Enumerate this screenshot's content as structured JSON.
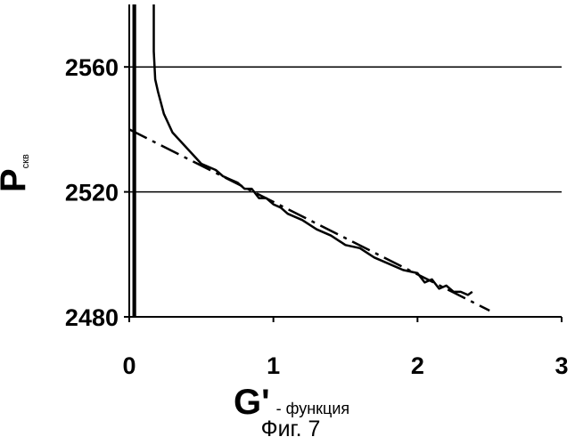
{
  "figure_caption": "Фиг. 7",
  "chart_data": {
    "type": "line",
    "title": "",
    "ylabel": {
      "main": "P",
      "sub": "скв"
    },
    "xlabel": {
      "main": "G'",
      "sub": " - функция"
    },
    "xlim": [
      0,
      3
    ],
    "ylim": [
      2480,
      2580
    ],
    "x_ticks": [
      0,
      1,
      2,
      3
    ],
    "y_ticks": [
      2480,
      2520,
      2560
    ],
    "x_tick_labels": [
      "0",
      "1",
      "2",
      "3"
    ],
    "y_tick_labels": [
      "2480",
      "2520",
      "2560"
    ],
    "grid": "horizontal",
    "legend": "none",
    "series": [
      {
        "style": "solid",
        "x": [
          0.17,
          0.17,
          0.18,
          0.2,
          0.24,
          0.3,
          0.4,
          0.5,
          0.55,
          0.6,
          0.65,
          0.7,
          0.75,
          0.8,
          0.85,
          0.9,
          0.95,
          1.0,
          1.05,
          1.1,
          1.15,
          1.2,
          1.3,
          1.4,
          1.5,
          1.6,
          1.7,
          1.8,
          1.9,
          2.0,
          2.05,
          2.1,
          2.15,
          2.2,
          2.25,
          2.3,
          2.35,
          2.38
        ],
        "y": [
          2580,
          2565,
          2556,
          2552,
          2545,
          2539,
          2534,
          2529,
          2528,
          2527,
          2525,
          2524,
          2523,
          2521,
          2521,
          2518,
          2518,
          2516,
          2515,
          2513,
          2512,
          2511,
          2508,
          2506,
          2503,
          2502,
          2499,
          2497,
          2495,
          2494,
          2491,
          2492,
          2489,
          2490,
          2488,
          2488,
          2487,
          2488
        ]
      },
      {
        "style": "dash-dot",
        "x": [
          0,
          2.5
        ],
        "y": [
          2540,
          2482
        ]
      },
      {
        "style": "solid",
        "x": [
          0.03,
          0.03
        ],
        "y": [
          2480,
          2580
        ]
      },
      {
        "style": "solid",
        "x": [
          0.04,
          0.04
        ],
        "y": [
          2480,
          2580
        ]
      }
    ]
  }
}
